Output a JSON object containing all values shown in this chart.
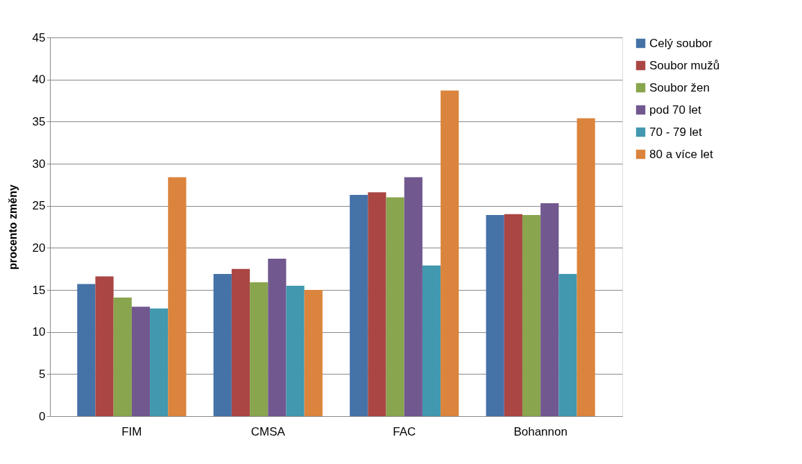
{
  "chart_data": {
    "type": "bar",
    "ylabel": "procento změny",
    "categories": [
      "FIM",
      "CMSA",
      "FAC",
      "Bohannon"
    ],
    "series": [
      {
        "name": "Celý soubor",
        "color": "#4572a7",
        "values": [
          15.7,
          16.9,
          26.3,
          23.9
        ]
      },
      {
        "name": "Soubor mužů",
        "color": "#aa4643",
        "values": [
          16.6,
          17.5,
          26.6,
          24.0
        ]
      },
      {
        "name": "Soubor žen",
        "color": "#89a54e",
        "values": [
          14.1,
          15.9,
          26.0,
          23.9
        ]
      },
      {
        "name": "pod 70 let",
        "color": "#71588f",
        "values": [
          13.0,
          18.7,
          28.4,
          25.3
        ]
      },
      {
        "name": "70 - 79 let",
        "color": "#4198af",
        "values": [
          12.8,
          15.5,
          17.9,
          16.9
        ]
      },
      {
        "name": "80 a více let",
        "color": "#db843d",
        "values": [
          28.4,
          15.0,
          38.7,
          35.4
        ]
      }
    ],
    "ylim": [
      0,
      45
    ],
    "yticks": [
      0,
      5,
      10,
      15,
      20,
      25,
      30,
      35,
      40,
      45
    ],
    "grid": "y",
    "legend": "right"
  }
}
